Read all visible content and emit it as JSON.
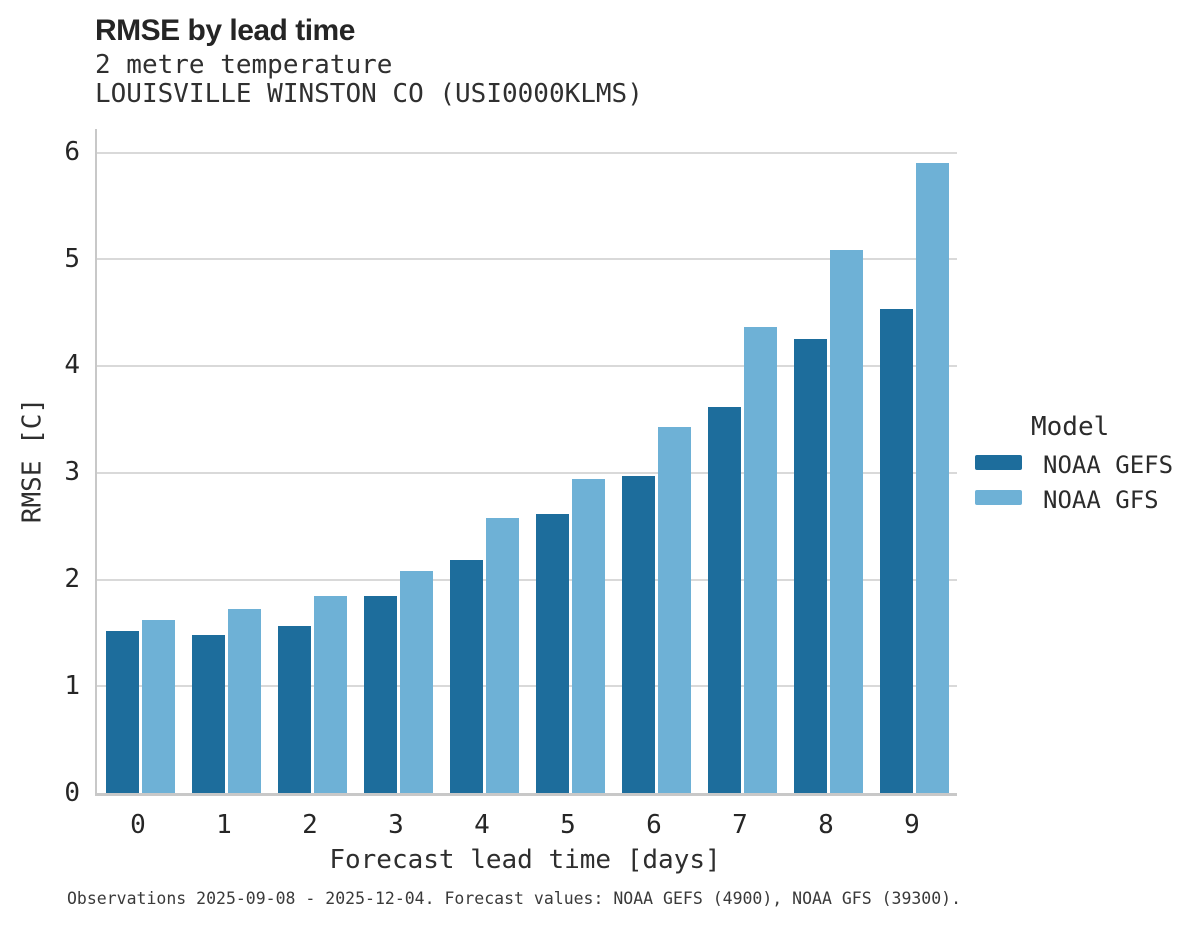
{
  "header": {
    "title": "RMSE by lead time",
    "subtitle_variable": "2 metre temperature",
    "subtitle_station": "LOUISVILLE WINSTON CO (USI0000KLMS)"
  },
  "chart_data": {
    "type": "bar",
    "title": "RMSE by lead time",
    "subtitle": [
      "2 metre temperature",
      "LOUISVILLE WINSTON CO (USI0000KLMS)"
    ],
    "categories": [
      "0",
      "1",
      "2",
      "3",
      "4",
      "5",
      "6",
      "7",
      "8",
      "9"
    ],
    "series": [
      {
        "name": "NOAA GEFS",
        "color": "#1d6d9c",
        "values": [
          1.52,
          1.48,
          1.56,
          1.85,
          2.18,
          2.61,
          2.97,
          3.62,
          4.25,
          4.53
        ]
      },
      {
        "name": "NOAA GFS",
        "color": "#6eb1d6",
        "values": [
          1.62,
          1.72,
          1.85,
          2.08,
          2.58,
          2.94,
          3.43,
          4.37,
          5.09,
          5.9
        ]
      }
    ],
    "xlabel": "Forecast lead time [days]",
    "ylabel": "RMSE [C]",
    "ylim": [
      0,
      6.22
    ],
    "yticks": [
      0,
      1,
      2,
      3,
      4,
      5,
      6
    ],
    "grid": "horizontal-light-gray",
    "legend_position": "right"
  },
  "legend": {
    "title": "Model",
    "items": [
      {
        "label": "NOAA GEFS"
      },
      {
        "label": "NOAA GFS"
      }
    ]
  },
  "footer": {
    "note": "Observations 2025-09-08 - 2025-12-04. Forecast values: NOAA GEFS (4900), NOAA GFS (39300)."
  },
  "colors": {
    "series_gefs": "#1d6d9c",
    "series_gfs": "#6eb1d6",
    "grid": "#d9d9d9",
    "spine": "#c8c8c8",
    "text": "#262626"
  }
}
